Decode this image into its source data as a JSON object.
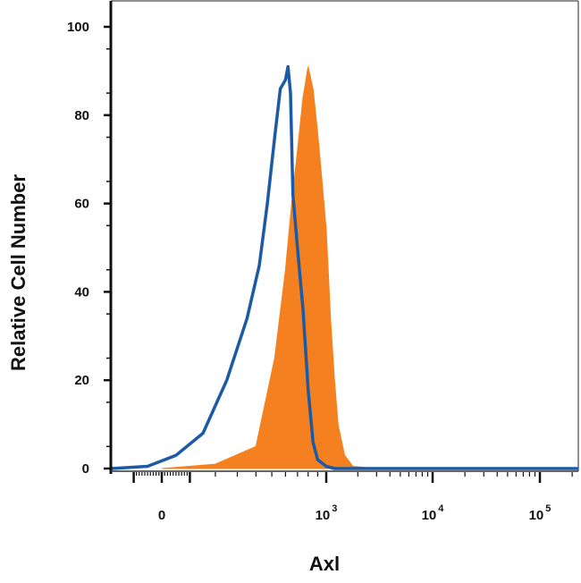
{
  "chart_data": {
    "type": "area",
    "title": "",
    "xlabel": "Axl",
    "ylabel": "Relative Cell Number",
    "x_scale": "biexponential",
    "ylim": [
      0,
      100
    ],
    "y_ticks": [
      0,
      20,
      40,
      60,
      80,
      100
    ],
    "x_tick_labels": [
      {
        "base": "0",
        "exp": ""
      },
      {
        "base": "10",
        "exp": "3"
      },
      {
        "base": "10",
        "exp": "4"
      },
      {
        "base": "10",
        "exp": "5"
      }
    ],
    "grid": false,
    "legend": "none",
    "series": [
      {
        "style": "filled",
        "color": "#f4801f",
        "x": [
          0,
          200,
          400,
          520,
          600,
          650,
          700,
          750,
          800,
          850,
          900,
          950,
          1000,
          1100,
          1200,
          1300,
          1500,
          1800,
          2500,
          5000,
          20000,
          100000,
          250000
        ],
        "y": [
          0,
          1,
          5,
          25,
          45,
          60,
          72,
          84,
          91,
          86,
          76,
          65,
          54,
          34,
          20,
          10,
          3,
          0.5,
          0.2,
          0,
          0,
          0,
          0
        ]
      },
      {
        "style": "outline",
        "color": "#1c5aa6",
        "x": [
          -200,
          -50,
          50,
          150,
          250,
          350,
          420,
          470,
          520,
          560,
          600,
          620,
          640,
          660,
          700,
          750,
          800,
          850,
          900,
          1000,
          1200,
          1500,
          2500,
          20000,
          250000
        ],
        "y": [
          0,
          0.5,
          3,
          8,
          20,
          34,
          46,
          60,
          75,
          86,
          88,
          91,
          85,
          62,
          50,
          36,
          18,
          6,
          2,
          0.5,
          0,
          0,
          0,
          0,
          0
        ]
      }
    ]
  }
}
